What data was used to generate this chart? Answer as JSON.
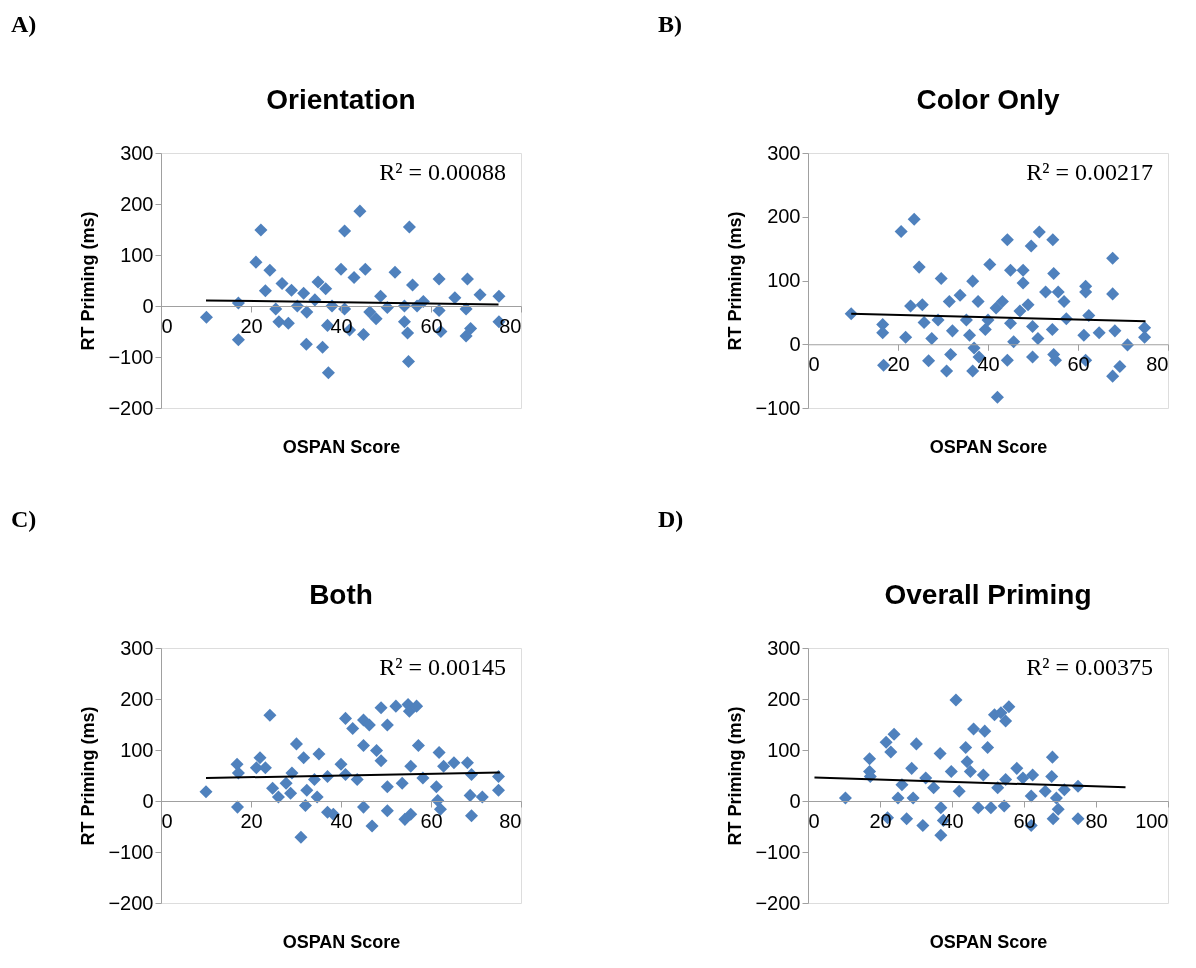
{
  "chart_data": [
    {
      "type": "scatter",
      "title": "Orientation",
      "xlabel": "OSPAN Score",
      "ylabel": "RT Priming (ms)",
      "annotations": [
        "A)",
        "R² = 0.00088"
      ],
      "xlim": [
        0,
        80
      ],
      "ylim": [
        -200,
        300
      ],
      "xticks": [
        0,
        20,
        40,
        60,
        80
      ],
      "yticks": [
        -200,
        -100,
        0,
        100,
        200,
        300
      ],
      "marker": "diamond",
      "series": [
        {
          "color": "#4f81bd",
          "x": [
            10.1,
            17.2,
            17.2,
            22.2,
            21.1,
            24.2,
            23.2,
            25.5,
            26.9,
            26.2,
            28.3,
            29,
            30.3,
            31.7,
            32.4,
            32.3,
            34.2,
            34.9,
            36.6,
            35.9,
            37.2,
            37,
            38,
            40,
            40.8,
            40.8,
            41.9,
            42.9,
            44.2,
            45.4,
            45,
            46.4,
            47.8,
            48.8,
            50.3,
            52,
            54.1,
            54.1,
            55.2,
            54.8,
            55,
            55.9,
            56.9,
            58.3,
            61.8,
            61.8,
            62.2,
            65.3,
            68.1,
            67.8,
            68.8,
            67.8,
            70.9,
            75.1,
            75.1
          ],
          "values": [
            -22,
            6,
            -66,
            149,
            86,
            70,
            30,
            -6,
            44,
            -31,
            -34,
            31,
            0,
            25,
            -12,
            -75,
            12,
            47,
            34,
            -81,
            -131,
            -38,
            0,
            72,
            147,
            -6,
            -47,
            56,
            186,
            72,
            -56,
            -12,
            -25,
            19,
            -3,
            66,
            0,
            -31,
            155,
            -53,
            -109,
            41,
            0,
            9,
            53,
            -9,
            -50,
            16,
            53,
            -6,
            -44,
            -59,
            22,
            19,
            -31
          ]
        },
        {
          "type": "line",
          "color": "#000000",
          "marker": "none",
          "x": [
            10,
            75
          ],
          "values": [
            11,
            3
          ]
        }
      ]
    },
    {
      "type": "scatter",
      "title": "Color Only",
      "xlabel": "OSPAN Score",
      "ylabel": "RT Priming (ms)",
      "annotations": [
        "B)",
        "R² = 0.00217"
      ],
      "xlim": [
        0,
        80
      ],
      "ylim": [
        -100,
        300
      ],
      "xticks": [
        0,
        20,
        40,
        60,
        80
      ],
      "yticks": [
        -100,
        0,
        100,
        200,
        300
      ],
      "marker": "diamond",
      "series": [
        {
          "color": "#4f81bd",
          "x": [
            9.6,
            16.6,
            16.6,
            16.8,
            20.7,
            21.7,
            23.6,
            22.8,
            24.7,
            25.4,
            25.8,
            26.8,
            27.5,
            28.9,
            29.6,
            30.8,
            31.7,
            31.4,
            32.1,
            33.8,
            35.2,
            35.9,
            36.6,
            36.9,
            38,
            36.6,
            37.8,
            39.4,
            40.4,
            40,
            42.1,
            41.8,
            43.2,
            44.3,
            45,
            44.3,
            45,
            45.7,
            47.1,
            47.8,
            47.8,
            48.9,
            49.6,
            49.9,
            49.9,
            51.4,
            51.1,
            52.8,
            54.4,
            54.6,
            54.3,
            54.6,
            55,
            55.6,
            56.9,
            57.4,
            61.7,
            61.7,
            61.3,
            61.7,
            62.4,
            64.7,
            67.7,
            67.7,
            68.2,
            69.3,
            67.7,
            71,
            74.8,
            74.8
          ],
          "values": [
            48,
            31,
            18,
            -33,
            177,
            11,
            196,
            60,
            121,
            62,
            34,
            -26,
            9,
            38,
            103,
            -42,
            -16,
            67,
            21,
            77,
            38,
            14,
            99,
            -6,
            -20,
            -42,
            67,
            23,
            125,
            38,
            -83,
            57,
            67,
            164,
            116,
            -25,
            33,
            4,
            52,
            116,
            96,
            62,
            154,
            -20,
            28,
            176,
            9,
            82,
            164,
            111,
            23,
            -16,
            -25,
            82,
            67,
            40,
            91,
            82,
            14,
            -25,
            45,
            18,
            135,
            79,
            21,
            -35,
            -50,
            -1,
            26,
            11
          ]
        },
        {
          "type": "line",
          "color": "#000000",
          "marker": "none",
          "x": [
            9.6,
            75
          ],
          "values": [
            48,
            36
          ]
        }
      ]
    },
    {
      "type": "scatter",
      "title": "Both",
      "xlabel": "OSPAN Score",
      "ylabel": "RT Priming (ms)",
      "annotations": [
        "C)",
        "R² = 0.00145"
      ],
      "xlim": [
        0,
        80
      ],
      "ylim": [
        -200,
        300
      ],
      "xticks": [
        0,
        20,
        40,
        60,
        80
      ],
      "yticks": [
        -200,
        -100,
        0,
        100,
        200,
        300
      ],
      "marker": "diamond",
      "series": [
        {
          "color": "#4f81bd",
          "x": [
            10,
            16.9,
            17.2,
            17,
            21.2,
            22,
            23.2,
            24.2,
            24.8,
            26.1,
            27.8,
            28.8,
            29.1,
            30.1,
            31.1,
            31.7,
            32.1,
            32.4,
            34.1,
            35.1,
            34.7,
            37,
            37,
            38.3,
            40,
            41,
            41,
            42.6,
            43.6,
            45,
            45,
            45,
            46.3,
            46.9,
            47.9,
            48.9,
            48.9,
            50.3,
            50.3,
            50.3,
            52.2,
            53.6,
            54.2,
            54.9,
            55.2,
            55.5,
            55.5,
            56.8,
            57.2,
            58.2,
            61.2,
            61.5,
            61.8,
            62.1,
            62.8,
            65.1,
            68.1,
            68.7,
            69,
            69,
            71.4,
            75,
            75
          ],
          "values": [
            18,
            72,
            55,
            -12,
            65,
            85,
            65,
            168,
            25,
            8,
            35,
            15,
            55,
            112,
            -71,
            85,
            -9,
            21,
            42,
            92,
            8,
            48,
            -22,
            -26,
            72,
            162,
            52,
            142,
            42,
            159,
            109,
            -12,
            149,
            -49,
            99,
            79,
            183,
            149,
            28,
            -19,
            186,
            35,
            -36,
            189,
            176,
            68,
            -26,
            186,
            109,
            45,
            28,
            1,
            95,
            -16,
            68,
            75,
            75,
            11,
            52,
            -29,
            8,
            48,
            21
          ]
        },
        {
          "type": "line",
          "color": "#000000",
          "marker": "none",
          "x": [
            10,
            75.3
          ],
          "values": [
            45,
            56
          ]
        }
      ]
    },
    {
      "type": "scatter",
      "title": "Overall Priming",
      "xlabel": "OSPAN Score",
      "ylabel": "RT Priming (ms)",
      "annotations": [
        "D)",
        "R² = 0.00375"
      ],
      "xlim": [
        0,
        100
      ],
      "ylim": [
        -200,
        300
      ],
      "xticks": [
        0,
        20,
        40,
        60,
        80,
        100
      ],
      "yticks": [
        -200,
        -100,
        0,
        100,
        200,
        300
      ],
      "marker": "diamond",
      "series": [
        {
          "color": "#4f81bd",
          "x": [
            10.4,
            17.1,
            17.1,
            17.3,
            21.7,
            22.1,
            23,
            23.9,
            25,
            26.1,
            27.4,
            29.2,
            30.1,
            28.8,
            31.9,
            32.7,
            34.9,
            36.7,
            36.9,
            37.6,
            36.9,
            39.8,
            41.1,
            42,
            43.8,
            44.2,
            45.1,
            46,
            47.3,
            48.7,
            49.1,
            49.9,
            50.8,
            51.8,
            52.7,
            53.6,
            54.9,
            55.8,
            54.5,
            54.9,
            58,
            59.7,
            62,
            62,
            62.4,
            65.9,
            67.9,
            67.7,
            68.1,
            69,
            69.5,
            71.2,
            75,
            75
          ],
          "values": [
            6,
            83,
            58,
            48,
            115,
            -33,
            96,
            131,
            6,
            32,
            -35,
            6,
            112,
            64,
            -48,
            45,
            26,
            93,
            -13,
            -38,
            -67,
            58,
            198,
            19,
            105,
            77,
            58,
            141,
            -13,
            51,
            137,
            105,
            -13,
            169,
            26,
            173,
            157,
            185,
            -10,
            42,
            64,
            45,
            10,
            -48,
            51,
            19,
            86,
            48,
            -35,
            6,
            -16,
            22,
            29,
            -35
          ]
        },
        {
          "type": "line",
          "color": "#000000",
          "marker": "none",
          "x": [
            1.8,
            88.2
          ],
          "values": [
            46,
            27
          ]
        }
      ]
    }
  ]
}
